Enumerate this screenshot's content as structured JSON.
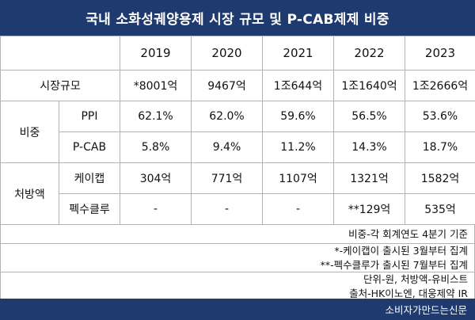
{
  "title": "국내 소화성궤양용제 시장 규모 및 P-CAB제제 비중",
  "years": [
    "2019",
    "2020",
    "2021",
    "2022",
    "2023"
  ],
  "market_size": {
    "label": "시장규모",
    "values": [
      "*8001억",
      "9467억",
      "1조644억",
      "1조1640억",
      "1조2666억"
    ]
  },
  "share": {
    "label": "비중",
    "rows": [
      {
        "label": "PPI",
        "values": [
          "62.1%",
          "62.0%",
          "59.6%",
          "56.5%",
          "53.6%"
        ]
      },
      {
        "label": "P-CAB",
        "values": [
          "5.8%",
          "9.4%",
          "11.2%",
          "14.3%",
          "18.7%"
        ]
      }
    ]
  },
  "prescription": {
    "label": "처방액",
    "rows": [
      {
        "label": "케이캡",
        "values": [
          "304억",
          "771억",
          "1107억",
          "1321억",
          "1582억"
        ]
      },
      {
        "label": "펙수클루",
        "values": [
          "-",
          "-",
          "-",
          "**129억",
          "535억"
        ]
      }
    ]
  },
  "notes": {
    "share_basis": "비중-각 회계연도 4분기 기준",
    "footnote1": "*-케이캡이 출시된 3월부터 집계",
    "footnote2": "**-펙수클루가 출시된 7월부터 집계",
    "unit": "단위-원, 처방액-유비스트",
    "source": "출처-HK이노엔, 대웅제약 IR"
  },
  "footer": "소비자가만드는신문"
}
